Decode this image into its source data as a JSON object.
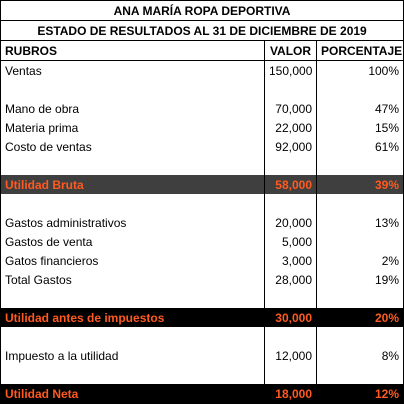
{
  "company": "ANA MARÍA ROPA DEPORTIVA",
  "statement_title": "ESTADO DE RESULTADOS AL 31 DE DICIEMBRE DE 2019",
  "headers": {
    "rubros": "RUBROS",
    "valor": "VALOR",
    "porcentaje": "PORCENTAJE"
  },
  "rows": {
    "ventas": {
      "label": "Ventas",
      "valor": "150,000",
      "pct": "100%"
    },
    "mano_obra": {
      "label": "Mano de obra",
      "valor": "70,000",
      "pct": "47%"
    },
    "materia_prima": {
      "label": "Materia prima",
      "valor": "22,000",
      "pct": "15%"
    },
    "costo_ventas": {
      "label": "Costo de ventas",
      "valor": "92,000",
      "pct": "61%"
    },
    "utilidad_bruta": {
      "label": "Utilidad Bruta",
      "valor": "58,000",
      "pct": "39%"
    },
    "gastos_admin": {
      "label": "Gastos administrativos",
      "valor": "20,000",
      "pct": "13%"
    },
    "gastos_venta": {
      "label": "Gastos de venta",
      "valor": "5,000",
      "pct": ""
    },
    "gastos_fin": {
      "label": "Gatos financieros",
      "valor": "3,000",
      "pct": "2%"
    },
    "total_gastos": {
      "label": "Total Gastos",
      "valor": "28,000",
      "pct": "19%"
    },
    "utilidad_antes": {
      "label": "Utilidad antes de impuestos",
      "valor": "30,000",
      "pct": "20%"
    },
    "impuesto": {
      "label": "Impuesto a la utilidad",
      "valor": "12,000",
      "pct": "8%"
    },
    "utilidad_neta": {
      "label": "Utilidad Neta",
      "valor": "18,000",
      "pct": "12%"
    }
  },
  "colors": {
    "highlight_text": "#ff5a1f",
    "band_gray": "#3f3f3f",
    "band_black": "#000000"
  }
}
